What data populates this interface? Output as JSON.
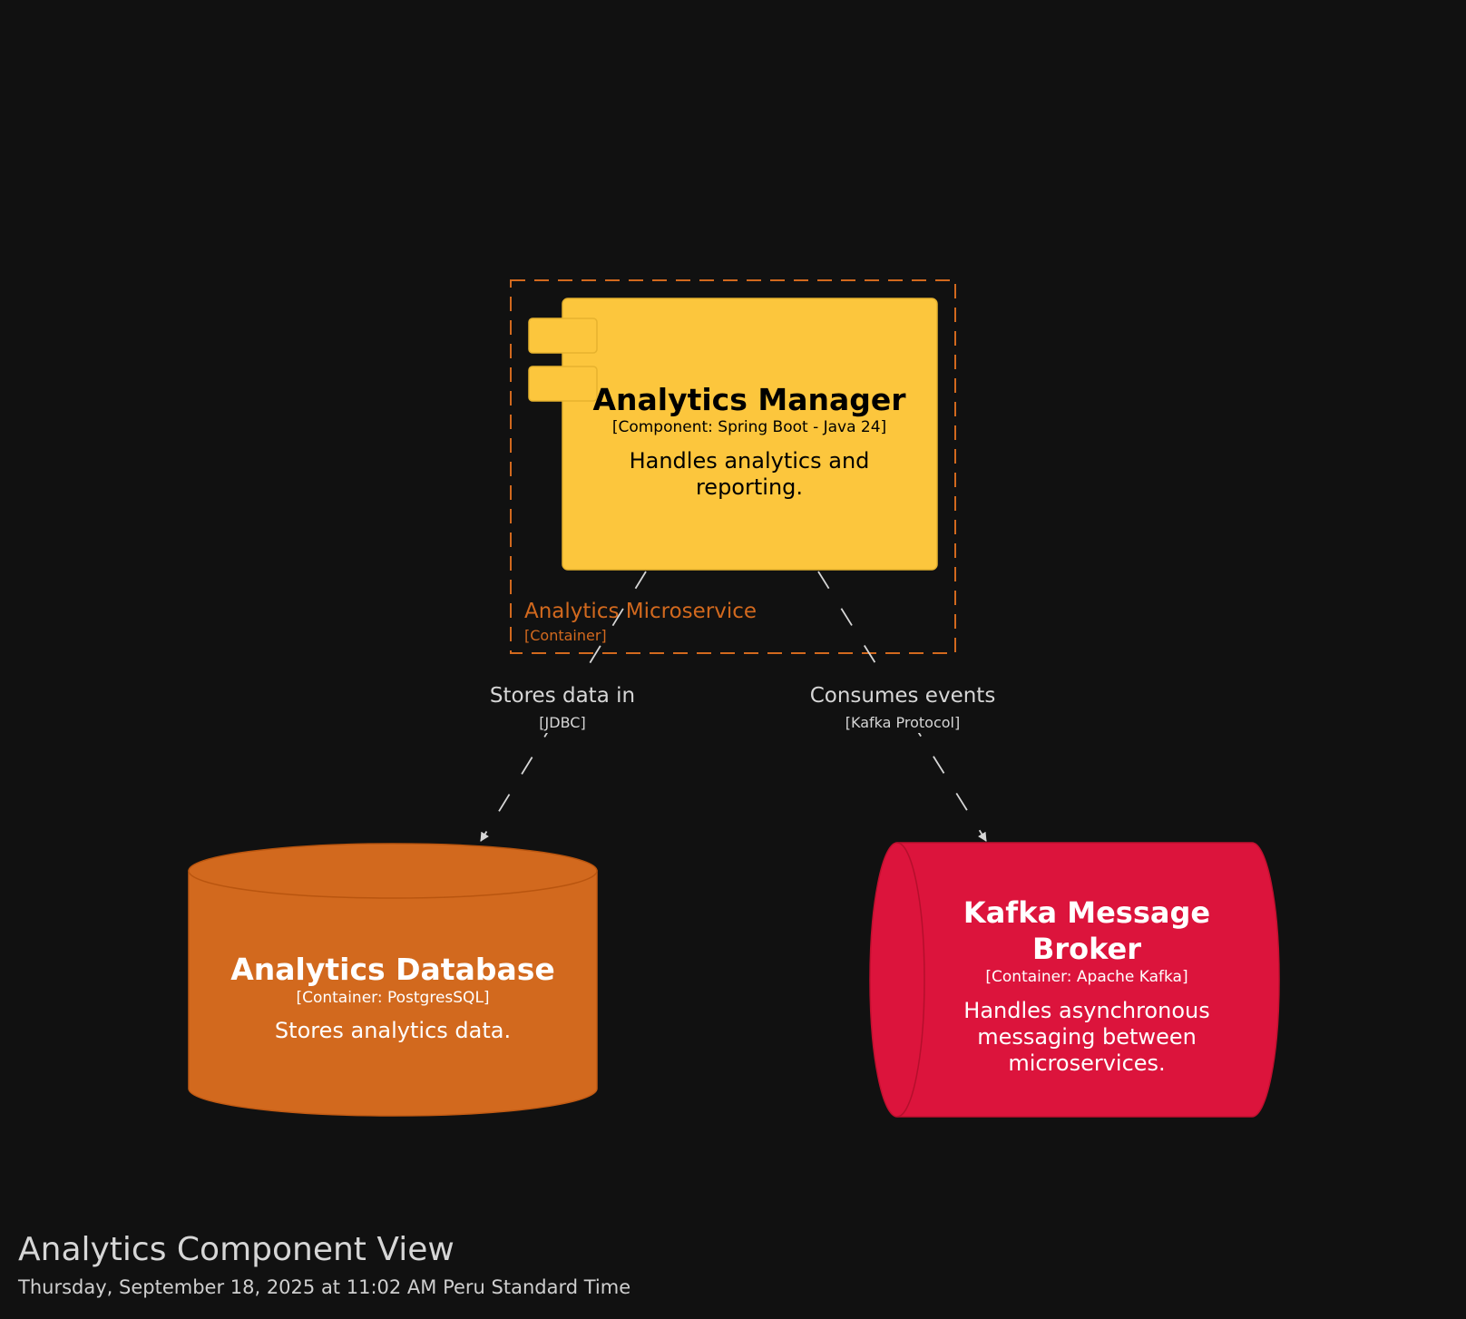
{
  "diagram": {
    "title": "Analytics Component View",
    "date": "Thursday, September 18, 2025 at 11:02 AM Peru Standard Time",
    "colors": {
      "background": "#111111",
      "component_fill": "#FCC63D",
      "component_text": "#000000",
      "boundary": "#D2691E",
      "database_fill": "#D2691E",
      "queue_fill": "#DC143C",
      "node_text": "#FFFFFF",
      "relationship": "#D6D6D6"
    },
    "boundary": {
      "name": "Analytics Microservice",
      "type": "[Container]"
    },
    "component": {
      "name": "Analytics Manager",
      "tech": "[Component: Spring Boot - Java 24]",
      "desc_line1": "Handles analytics and",
      "desc_line2": "reporting.",
      "icon": "component-icon"
    },
    "database": {
      "name": "Analytics Database",
      "tech": "[Container: PostgresSQL]",
      "desc": "Stores analytics data.",
      "icon": "database-cylinder-icon"
    },
    "queue": {
      "name_line1": "Kafka Message",
      "name_line2": "Broker",
      "tech": "[Container: Apache Kafka]",
      "desc_line1": "Handles asynchronous",
      "desc_line2": "messaging between",
      "desc_line3": "microservices.",
      "icon": "queue-cylinder-icon"
    },
    "relationships": [
      {
        "label": "Stores data in",
        "tech": "[JDBC]",
        "from": "Analytics Manager",
        "to": "Analytics Database"
      },
      {
        "label": "Consumes events",
        "tech": "[Kafka Protocol]",
        "from": "Analytics Manager",
        "to": "Kafka Message Broker"
      }
    ]
  }
}
